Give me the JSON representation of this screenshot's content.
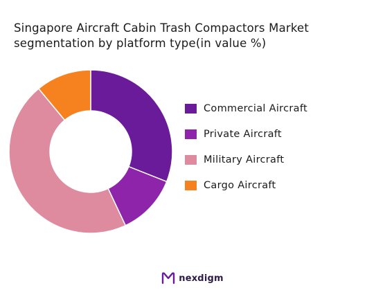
{
  "title_lines": [
    "Singapore Aircraft Cabin Trash Compactors Market",
    "segmentation by platform type(in value %)"
  ],
  "brand": {
    "name": "nexdigm",
    "logo_icon": "nexdigm-logo-icon",
    "color": "#2e1a47"
  },
  "chart_data": {
    "type": "pie",
    "variant": "donut",
    "title": "Singapore Aircraft Cabin Trash Compactors Market segmentation by platform type(in value %)",
    "legend_position": "right",
    "slices": [
      {
        "label": "Commercial Aircraft",
        "value": 31,
        "color": "#6a1b9a"
      },
      {
        "label": "Private Aircraft",
        "value": 12,
        "color": "#8e24aa"
      },
      {
        "label": "Military Aircraft",
        "value": 46,
        "color": "#de8ba0"
      },
      {
        "label": "Cargo Aircraft",
        "value": 11,
        "color": "#f5821f"
      }
    ]
  }
}
